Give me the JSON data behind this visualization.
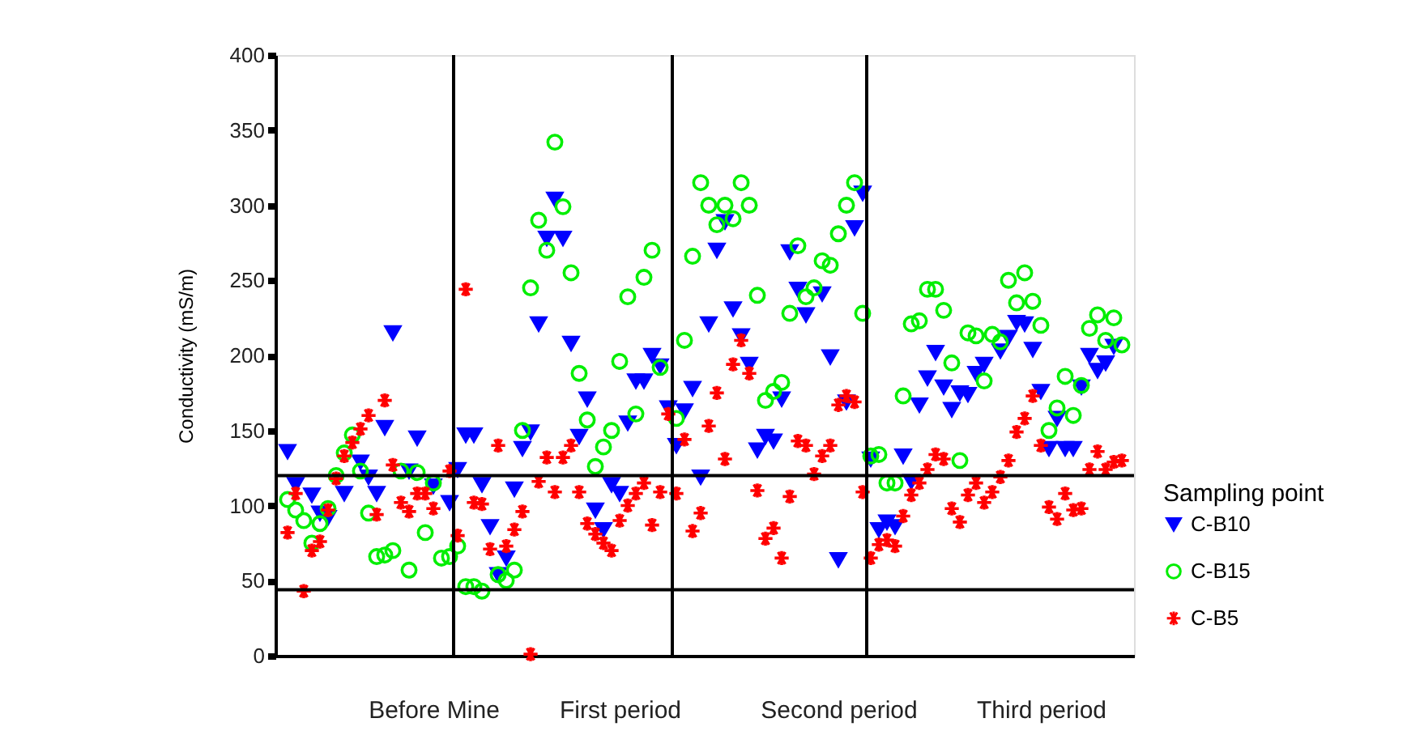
{
  "chart_data": {
    "type": "scatter",
    "ylabel": "Conductivity (mS/m)",
    "legend_title": "Sampling point",
    "legend": "right",
    "grid": false,
    "categories": [
      null,
      null,
      null,
      null,
      null,
      null,
      null,
      null,
      null,
      null,
      null,
      null,
      null,
      null,
      null,
      null,
      null,
      null,
      null,
      "Before Mine",
      null,
      null,
      null,
      null,
      null,
      null,
      null,
      null,
      null,
      null,
      null,
      null,
      null,
      null,
      null,
      null,
      null,
      null,
      null,
      null,
      null,
      null,
      "First period",
      null,
      null,
      null,
      null,
      null,
      null,
      null,
      null,
      null,
      null,
      null,
      null,
      null,
      null,
      null,
      null,
      null,
      null,
      null,
      null,
      null,
      null,
      null,
      null,
      null,
      null,
      "Second period",
      null,
      null,
      null,
      null,
      null,
      null,
      null,
      null,
      null,
      null,
      null,
      null,
      null,
      null,
      null,
      null,
      null,
      null,
      null,
      null,
      null,
      null,
      null,
      null,
      "Third period",
      null,
      null,
      null,
      null,
      null,
      null,
      null,
      null,
      null,
      null,
      null
    ],
    "ylim": [
      0,
      400
    ],
    "yticks": [
      0,
      50,
      100,
      150,
      200,
      250,
      300,
      350,
      400
    ],
    "ref_lines": [
      {
        "axis": "y",
        "value": 44,
        "color": "#000000"
      },
      {
        "axis": "y",
        "value": 120,
        "color": "#000000"
      }
    ],
    "series": [
      {
        "name": "C-B10",
        "color": "#0000ff",
        "marker": "triangle",
        "values": [
          null,
          136,
          114,
          null,
          107,
          95,
          92,
          null,
          108,
          null,
          129,
          119,
          108,
          152,
          215,
          null,
          123,
          145,
          null,
          113,
          null,
          102,
          124,
          147,
          147,
          114,
          86,
          54,
          65,
          111,
          138,
          149,
          221,
          278,
          304,
          278,
          208,
          146,
          171,
          97,
          84,
          114,
          108,
          155,
          183,
          183,
          200,
          193,
          165,
          140,
          163,
          178,
          119,
          221,
          270,
          289,
          231,
          213,
          194,
          137,
          146,
          143,
          171,
          269,
          244,
          227,
          null,
          241,
          199,
          64,
          169,
          285,
          308,
          131,
          84,
          89,
          86,
          133,
          116,
          167,
          185,
          202,
          179,
          164,
          175,
          174,
          188,
          194,
          null,
          203,
          212,
          222,
          221,
          204,
          176,
          138,
          158,
          138,
          138,
          179,
          200,
          190,
          195,
          206,
          null,
          null
        ]
      },
      {
        "name": "C-B15",
        "color": "#00ee00",
        "marker": "circle",
        "values": [
          null,
          104,
          97,
          90,
          75,
          88,
          98,
          120,
          135,
          147,
          123,
          95,
          66,
          67,
          70,
          123,
          57,
          122,
          82,
          115,
          65,
          66,
          73,
          46,
          46,
          43,
          null,
          54,
          50,
          57,
          150,
          245,
          290,
          270,
          342,
          299,
          255,
          188,
          157,
          126,
          139,
          150,
          196,
          239,
          161,
          252,
          270,
          192,
          null,
          158,
          210,
          266,
          315,
          300,
          287,
          300,
          291,
          315,
          300,
          240,
          170,
          176,
          182,
          228,
          273,
          239,
          245,
          263,
          260,
          281,
          300,
          315,
          228,
          133,
          134,
          115,
          115,
          173,
          221,
          223,
          244,
          244,
          230,
          195,
          130,
          215,
          213,
          183,
          214,
          209,
          250,
          235,
          255,
          236,
          220,
          150,
          165,
          186,
          160,
          180,
          218,
          227,
          210,
          225,
          207,
          null
        ]
      },
      {
        "name": "C-B5",
        "color": "#ff0000",
        "marker": "cross",
        "values": [
          null,
          82,
          108,
          43,
          70,
          76,
          97,
          118,
          133,
          142,
          151,
          160,
          94,
          170,
          127,
          102,
          96,
          108,
          108,
          98,
          null,
          123,
          80,
          244,
          102,
          101,
          71,
          140,
          73,
          84,
          96,
          1,
          116,
          132,
          109,
          132,
          140,
          109,
          88,
          81,
          75,
          70,
          90,
          100,
          108,
          115,
          87,
          109,
          161,
          108,
          144,
          83,
          95,
          153,
          175,
          131,
          194,
          210,
          188,
          110,
          78,
          85,
          65,
          106,
          143,
          140,
          121,
          133,
          140,
          167,
          173,
          169,
          109,
          65,
          74,
          77,
          73,
          93,
          107,
          115,
          124,
          134,
          131,
          98,
          89,
          107,
          115,
          102,
          109,
          119,
          130,
          149,
          158,
          173,
          140,
          99,
          91,
          108,
          97,
          98,
          124,
          136,
          124,
          129,
          130,
          null
        ]
      }
    ]
  }
}
